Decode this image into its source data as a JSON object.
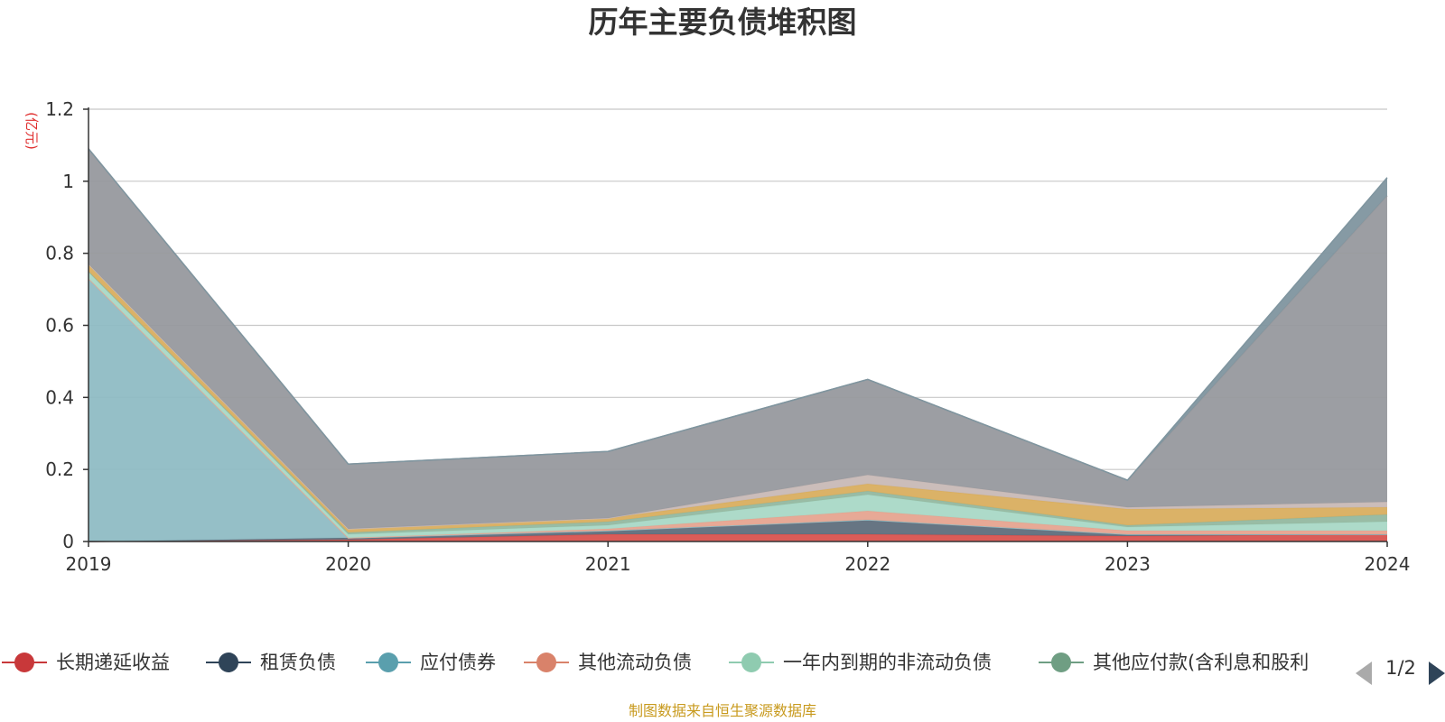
{
  "chart_data": {
    "type": "area",
    "stacked": true,
    "title": "历年主要负债堆积图",
    "unit_label": "(亿元)",
    "categories": [
      "2019",
      "2020",
      "2021",
      "2022",
      "2023",
      "2024"
    ],
    "ylim": [
      0,
      1.2
    ],
    "yticks": [
      "0",
      "0.2",
      "0.4",
      "0.6",
      "0.8",
      "1",
      "1.2"
    ],
    "grid": true,
    "series": [
      {
        "name": "长期递延收益",
        "color": "#d9534f",
        "values": [
          0.0,
          0.005,
          0.02,
          0.02,
          0.015,
          0.02
        ]
      },
      {
        "name": "租赁负债",
        "color": "#5f6e7c",
        "values": [
          0.0,
          0.005,
          0.01,
          0.04,
          0.005,
          0.0
        ]
      },
      {
        "name": "应付债券",
        "color": "#8fbcc4",
        "values": [
          0.73,
          0.0,
          0.0,
          0.0,
          0.0,
          0.0
        ]
      },
      {
        "name": "其他流动负债",
        "color": "#e6a490",
        "values": [
          0.0,
          0.0,
          0.005,
          0.025,
          0.01,
          0.01
        ]
      },
      {
        "name": "一年内到期的非流动负债",
        "color": "#a9d8c6",
        "values": [
          0.02,
          0.01,
          0.01,
          0.045,
          0.01,
          0.025
        ]
      },
      {
        "name": "其他应付款(含利息和股利",
        "color": "#93b8a0",
        "values": [
          0.0,
          0.005,
          0.01,
          0.01,
          0.005,
          0.02
        ]
      },
      {
        "name": "",
        "color": "#d9ae5f",
        "values": [
          0.02,
          0.01,
          0.01,
          0.02,
          0.045,
          0.02
        ]
      },
      {
        "name": "",
        "color": "#c8b9b6",
        "values": [
          0.0,
          0.0,
          0.0,
          0.025,
          0.005,
          0.015
        ]
      },
      {
        "name": "",
        "color": "#97999e",
        "values": [
          0.32,
          0.18,
          0.185,
          0.265,
          0.075,
          0.85
        ]
      },
      {
        "name": "",
        "color": "#7f959f",
        "values": [
          0.0,
          0.0,
          0.0,
          0.0,
          0.0,
          0.05
        ]
      }
    ],
    "legend": {
      "position": "bottom",
      "visible_items": [
        "长期递延收益",
        "租赁负债",
        "应付债券",
        "其他流动负债",
        "一年内到期的非流动负债",
        "其他应付款(含利息和股利"
      ],
      "colors": [
        "#c8383a",
        "#2f4458",
        "#5a9fad",
        "#d9826a",
        "#8fcbb0",
        "#6f9e83"
      ],
      "page": "1/2"
    }
  },
  "footer": {
    "source": "制图数据来自恒生聚源数据库"
  },
  "colors": {
    "axis": "#333333",
    "grid": "#c8c8c8",
    "pager": "#2f4458",
    "pager_disabled": "#aaaaaa"
  }
}
